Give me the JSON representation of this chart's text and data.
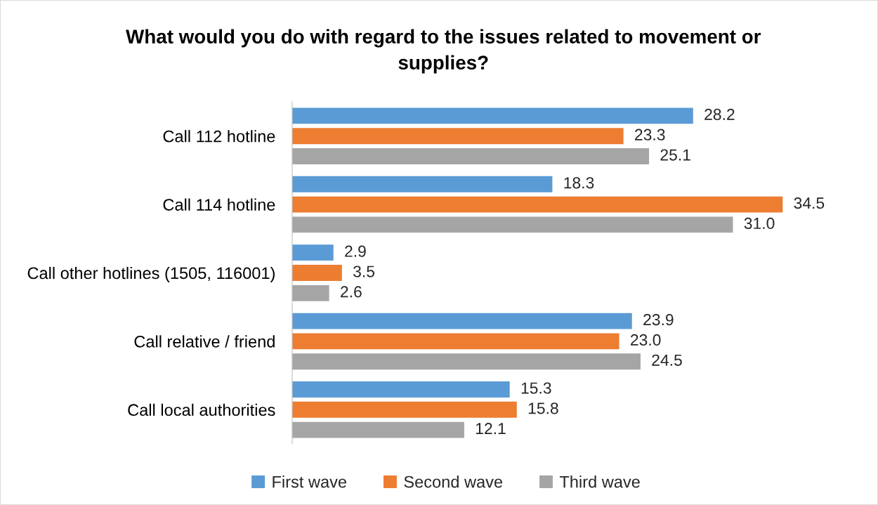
{
  "chart_data": {
    "type": "bar",
    "orientation": "horizontal",
    "title": "What would you do with regard to the issues related to movement or supplies?",
    "categories": [
      "Call 112 hotline",
      "Call 114 hotline",
      "Call other hotlines (1505, 116001)",
      "Call relative / friend",
      "Call local authorities"
    ],
    "series": [
      {
        "name": "First wave",
        "color": "#5b9bd5",
        "values": [
          28.2,
          18.3,
          2.9,
          23.9,
          15.3
        ],
        "value_labels": [
          "28.2",
          "18.3",
          "2.9",
          "23.9",
          "15.3"
        ]
      },
      {
        "name": "Second wave",
        "color": "#ed7d31",
        "values": [
          23.3,
          34.5,
          3.5,
          23.0,
          15.8
        ],
        "value_labels": [
          "23.3",
          "34.5",
          "3.5",
          "23.0",
          "15.8"
        ]
      },
      {
        "name": "Third wave",
        "color": "#a5a5a5",
        "values": [
          25.1,
          31.0,
          2.6,
          24.5,
          12.1
        ],
        "value_labels": [
          "25.1",
          "31.0",
          "2.6",
          "24.5",
          "12.1"
        ]
      }
    ],
    "tick_labels": "y",
    "legend": "bottom"
  }
}
